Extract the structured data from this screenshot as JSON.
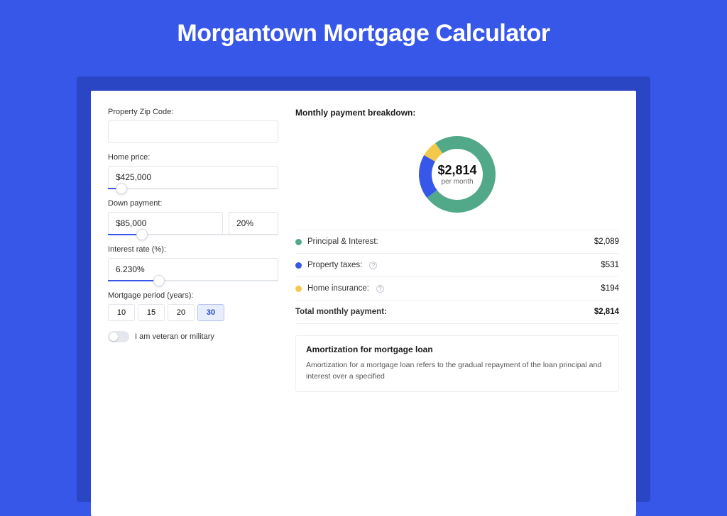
{
  "page": {
    "title": "Morgantown Mortgage Calculator",
    "background_color": "#3657e8",
    "shadow_color": "#2a46c4",
    "card_background": "#ffffff"
  },
  "inputs": {
    "zip": {
      "label": "Property Zip Code:",
      "value": ""
    },
    "home_price": {
      "label": "Home price:",
      "value": "$425,000",
      "slider_pct": 8
    },
    "down_payment": {
      "label": "Down payment:",
      "value": "$85,000",
      "pct": "20%",
      "slider_pct": 20
    },
    "interest_rate": {
      "label": "Interest rate (%):",
      "value": "6.230%",
      "slider_pct": 30
    },
    "mortgage_period": {
      "label": "Mortgage period (years):",
      "options": [
        "10",
        "15",
        "20",
        "30"
      ],
      "selected": "30"
    },
    "veteran": {
      "label": "I am veteran or military",
      "on": false
    }
  },
  "breakdown": {
    "title": "Monthly payment breakdown:",
    "center_value": "$2,814",
    "center_sub": "per month",
    "items": [
      {
        "key": "pi",
        "label": "Principal & Interest:",
        "value": "$2,089",
        "color": "#51a98a",
        "has_help": false
      },
      {
        "key": "tax",
        "label": "Property taxes:",
        "value": "$531",
        "color": "#3657e8",
        "has_help": true
      },
      {
        "key": "ins",
        "label": "Home insurance:",
        "value": "$194",
        "color": "#f2c94c",
        "has_help": true
      }
    ],
    "total": {
      "label": "Total monthly payment:",
      "value": "$2,814"
    },
    "donut": {
      "type": "pie",
      "ring_thickness": 18,
      "background_color": "#ffffff",
      "slices": [
        {
          "label": "Principal & Interest",
          "value": 2089,
          "pct": 74.2,
          "color": "#51a98a"
        },
        {
          "label": "Property taxes",
          "value": 531,
          "pct": 18.9,
          "color": "#3657e8"
        },
        {
          "label": "Home insurance",
          "value": 194,
          "pct": 6.9,
          "color": "#f2c94c"
        }
      ],
      "start_angle_deg": -125
    }
  },
  "amortization": {
    "title": "Amortization for mortgage loan",
    "text": "Amortization for a mortgage loan refers to the gradual repayment of the loan principal and interest over a specified"
  }
}
